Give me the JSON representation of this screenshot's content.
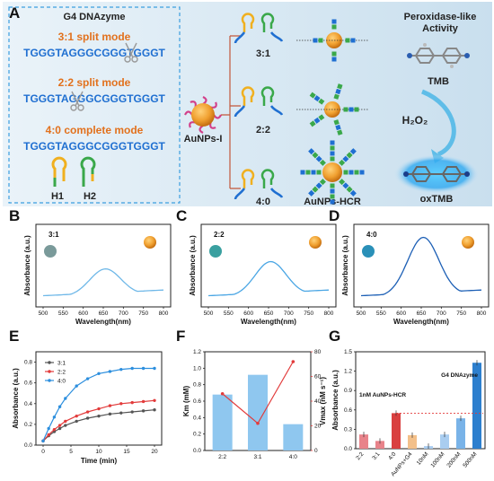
{
  "panels": {
    "A": "A",
    "B": "B",
    "C": "C",
    "D": "D",
    "E": "E",
    "F": "F",
    "G": "G"
  },
  "panel_a": {
    "box_title": "G4 DNAzyme",
    "mode_31": "3:1 split mode",
    "seq_31": "TGGGTAGGGCGGGTGGGT",
    "mode_22": "2:2 split mode",
    "seq_22": "TGGGTAGGGCGGGTGGGT",
    "mode_40": "4:0 complete mode",
    "seq_40": "TGGGTAGGGCGGGTGGGT",
    "h1": "H1",
    "h2": "H2",
    "aunps": "AuNPs-I",
    "r31": "3:1",
    "r22": "2:2",
    "r40": "4:0",
    "aunps_hcr": "AuNPs-HCR",
    "activity": "Peroxidase-like\nActivity",
    "tmb": "TMB",
    "h2o2": "H₂O₂",
    "oxtmb": "oxTMB",
    "colors": {
      "bg": "#dbe9f3",
      "gold": "#f0a030",
      "blue": "#1f6fd1",
      "orange": "#e2711d",
      "green": "#3aa84a"
    }
  },
  "uv_panels": [
    {
      "label": "3:1",
      "ylabel": "Absorbance (a.u.)",
      "xlabel": "Wavelength(nm)",
      "ticks": [
        "500",
        "550",
        "600",
        "650",
        "700",
        "750",
        "800"
      ],
      "peak": 0.33,
      "color": "#6fb8e8",
      "dot": "#7a9a9a"
    },
    {
      "label": "2:2",
      "ylabel": "Absorbance (a.u.)",
      "xlabel": "Wavelength(nm)",
      "ticks": [
        "500",
        "550",
        "600",
        "650",
        "700",
        "750",
        "800"
      ],
      "peak": 0.42,
      "color": "#4aa6e4",
      "dot": "#3aa0a0"
    },
    {
      "label": "4:0",
      "ylabel": "Absorbance (a.u.)",
      "xlabel": "Wavelength(nm)",
      "ticks": [
        "500",
        "550",
        "600",
        "650",
        "700",
        "750",
        "800"
      ],
      "peak": 0.72,
      "color": "#1c5fb5",
      "dot": "#2a90b8"
    }
  ],
  "chart_data": [
    {
      "type": "line",
      "ylabel": "Absorbance (a.u.)",
      "xlabel": "Time (min)",
      "x": [
        0,
        1,
        2,
        3,
        4,
        6,
        8,
        10,
        12,
        14,
        16,
        18,
        20
      ],
      "xticks": [
        "0",
        "5",
        "10",
        "15",
        "20"
      ],
      "yticks": [
        "0.0",
        "0.2",
        "0.4",
        "0.6",
        "0.8"
      ],
      "ylim": [
        0,
        0.9
      ],
      "series": [
        {
          "name": "3:1",
          "values": [
            0.04,
            0.09,
            0.13,
            0.16,
            0.19,
            0.23,
            0.26,
            0.28,
            0.3,
            0.31,
            0.32,
            0.33,
            0.34
          ],
          "color": "#555555"
        },
        {
          "name": "2:2",
          "values": [
            0.04,
            0.1,
            0.15,
            0.19,
            0.23,
            0.28,
            0.32,
            0.35,
            0.38,
            0.4,
            0.41,
            0.42,
            0.43
          ],
          "color": "#e23b3b"
        },
        {
          "name": "4:0",
          "values": [
            0.04,
            0.16,
            0.27,
            0.37,
            0.45,
            0.57,
            0.64,
            0.69,
            0.71,
            0.73,
            0.74,
            0.74,
            0.74
          ],
          "color": "#2d8fde"
        }
      ]
    },
    {
      "type": "bar",
      "categories": [
        "2:2",
        "3:1",
        "4:0"
      ],
      "values": [
        0.68,
        0.92,
        0.32
      ],
      "ylabel": "Km (mM)",
      "ylim": [
        0,
        1.2
      ],
      "yticks": [
        "0.0",
        "0.2",
        "0.4",
        "0.6",
        "0.8",
        "1.0",
        "1.2"
      ],
      "line_values": [
        46,
        22,
        72
      ],
      "y2label": "Vmax (nM s⁻¹)",
      "y2lim": [
        0,
        80
      ],
      "y2ticks": [
        "0",
        "20",
        "40",
        "60",
        "80"
      ]
    },
    {
      "type": "bar",
      "categories": [
        "2:2",
        "3:1",
        "4:0",
        "AuNPs+G4",
        "10nM",
        "100nM",
        "200nM",
        "500nM"
      ],
      "values": [
        0.22,
        0.12,
        0.55,
        0.21,
        0.04,
        0.22,
        0.47,
        1.33
      ],
      "colors": [
        "#e8838a",
        "#e8838a",
        "#d94040",
        "#f3c08a",
        "#a9cdf0",
        "#a9cdf0",
        "#79b3e8",
        "#2d7fce"
      ],
      "ylabel": "Absorbance (a.u.)",
      "ylim": [
        0,
        1.5
      ],
      "yticks": [
        "0.0",
        "0.3",
        "0.6",
        "0.9",
        "1.2",
        "1.5"
      ],
      "annotation_left": "1nM AuNPs-HCR",
      "annotation_right": "G4 DNAzyme",
      "reference": 0.55
    }
  ]
}
